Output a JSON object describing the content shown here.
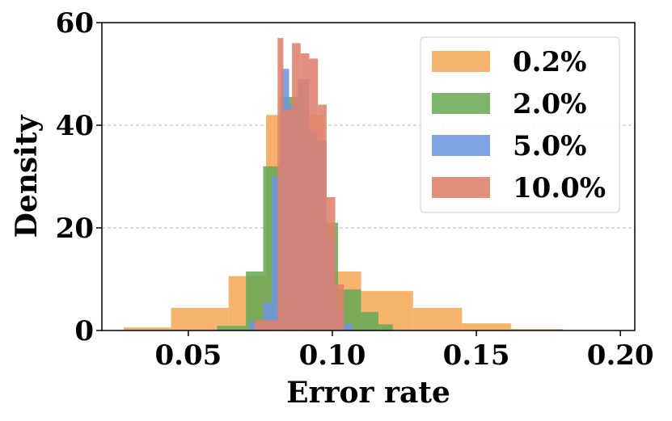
{
  "chart_data": {
    "type": "bar",
    "subtype": "overlaid-histogram",
    "title": "",
    "xlabel": "Error rate",
    "ylabel": "Density",
    "xlim": [
      0.02,
      0.205
    ],
    "ylim": [
      0,
      60
    ],
    "xticks": [
      0.05,
      0.1,
      0.15,
      0.2
    ],
    "xtick_labels": [
      "0.05",
      "0.10",
      "0.15",
      "0.20"
    ],
    "yticks": [
      0,
      20,
      40,
      60
    ],
    "ytick_labels": [
      "0",
      "20",
      "40",
      "60"
    ],
    "grid": "y-dashed",
    "legend_position": "top-right",
    "series": [
      {
        "name": "0.2%",
        "color": "#f4a95a",
        "bins": [
          {
            "x0": 0.0275,
            "x1": 0.044,
            "density": 0.6
          },
          {
            "x0": 0.044,
            "x1": 0.064,
            "density": 4.4
          },
          {
            "x0": 0.064,
            "x1": 0.077,
            "density": 10.6
          },
          {
            "x0": 0.077,
            "x1": 0.097,
            "density": 42.0
          },
          {
            "x0": 0.097,
            "x1": 0.11,
            "density": 11.5
          },
          {
            "x0": 0.11,
            "x1": 0.128,
            "density": 7.7
          },
          {
            "x0": 0.128,
            "x1": 0.145,
            "density": 4.4
          },
          {
            "x0": 0.145,
            "x1": 0.162,
            "density": 1.4
          },
          {
            "x0": 0.162,
            "x1": 0.18,
            "density": 0.3
          }
        ]
      },
      {
        "name": "2.0%",
        "color": "#6aaa56",
        "bins": [
          {
            "x0": 0.06,
            "x1": 0.07,
            "density": 0.9
          },
          {
            "x0": 0.07,
            "x1": 0.076,
            "density": 11.5
          },
          {
            "x0": 0.076,
            "x1": 0.082,
            "density": 32.0
          },
          {
            "x0": 0.082,
            "x1": 0.09,
            "density": 45.5
          },
          {
            "x0": 0.09,
            "x1": 0.097,
            "density": 36.5
          },
          {
            "x0": 0.097,
            "x1": 0.102,
            "density": 21.0
          },
          {
            "x0": 0.102,
            "x1": 0.11,
            "density": 8.0
          },
          {
            "x0": 0.11,
            "x1": 0.116,
            "density": 3.6
          },
          {
            "x0": 0.116,
            "x1": 0.121,
            "density": 1.2
          }
        ]
      },
      {
        "name": "5.0%",
        "color": "#6e96e0",
        "bins": [
          {
            "x0": 0.071,
            "x1": 0.076,
            "density": 1.8
          },
          {
            "x0": 0.076,
            "x1": 0.079,
            "density": 5.4
          },
          {
            "x0": 0.079,
            "x1": 0.082,
            "density": 30.0
          },
          {
            "x0": 0.082,
            "x1": 0.085,
            "density": 51.0
          },
          {
            "x0": 0.085,
            "x1": 0.088,
            "density": 44.0
          },
          {
            "x0": 0.088,
            "x1": 0.092,
            "density": 49.0
          },
          {
            "x0": 0.092,
            "x1": 0.095,
            "density": 39.0
          },
          {
            "x0": 0.095,
            "x1": 0.098,
            "density": 37.0
          },
          {
            "x0": 0.098,
            "x1": 0.101,
            "density": 18.0
          },
          {
            "x0": 0.101,
            "x1": 0.104,
            "density": 4.5
          },
          {
            "x0": 0.104,
            "x1": 0.107,
            "density": 1.3
          }
        ]
      },
      {
        "name": "10.0%",
        "color": "#df7f6c",
        "bins": [
          {
            "x0": 0.073,
            "x1": 0.081,
            "density": 2.0
          },
          {
            "x0": 0.081,
            "x1": 0.083,
            "density": 57.0
          },
          {
            "x0": 0.083,
            "x1": 0.086,
            "density": 43.0
          },
          {
            "x0": 0.086,
            "x1": 0.089,
            "density": 56.0
          },
          {
            "x0": 0.089,
            "x1": 0.092,
            "density": 54.0
          },
          {
            "x0": 0.092,
            "x1": 0.095,
            "density": 53.0
          },
          {
            "x0": 0.095,
            "x1": 0.098,
            "density": 44.0
          },
          {
            "x0": 0.098,
            "x1": 0.101,
            "density": 26.0
          },
          {
            "x0": 0.101,
            "x1": 0.104,
            "density": 9.0
          }
        ]
      }
    ]
  }
}
